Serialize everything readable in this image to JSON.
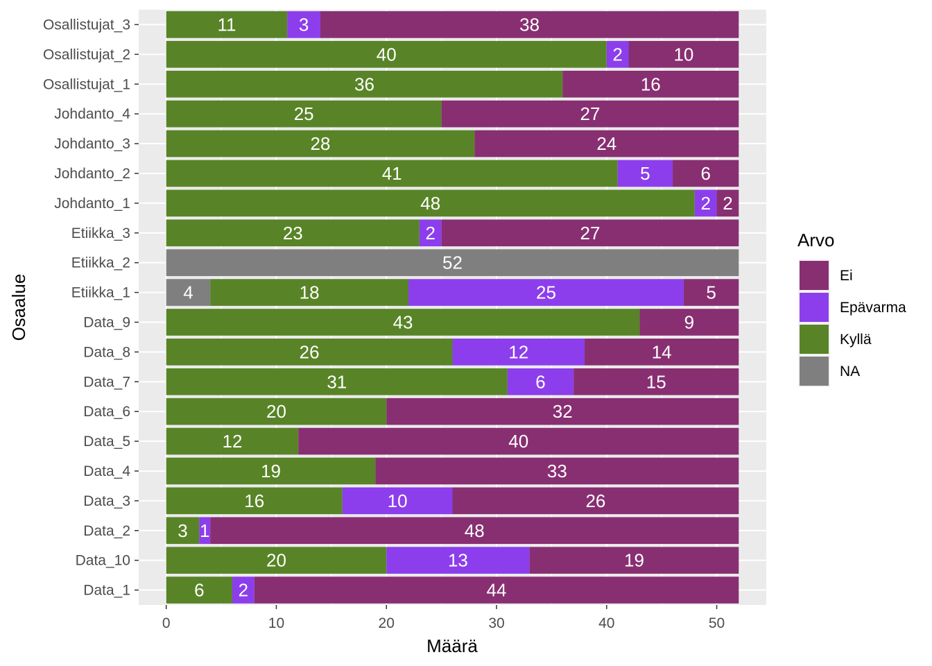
{
  "chart_data": {
    "type": "bar",
    "orientation": "horizontal",
    "stacked": true,
    "xlabel": "Määrä",
    "ylabel": "Osaalue",
    "xlim": [
      -2.5,
      54.5
    ],
    "xticks": [
      0,
      10,
      20,
      30,
      40,
      50
    ],
    "grid": true,
    "categories": [
      "Osallistujat_3",
      "Osallistujat_2",
      "Osallistujat_1",
      "Johdanto_4",
      "Johdanto_3",
      "Johdanto_2",
      "Johdanto_1",
      "Etiikka_3",
      "Etiikka_2",
      "Etiikka_1",
      "Data_9",
      "Data_8",
      "Data_7",
      "Data_6",
      "Data_5",
      "Data_4",
      "Data_3",
      "Data_2",
      "Data_10",
      "Data_1"
    ],
    "stack_order": [
      "NA",
      "Kyllä",
      "Epävarma",
      "Ei"
    ],
    "series": [
      {
        "name": "Ei",
        "color": "#882f72",
        "values": [
          38,
          10,
          16,
          27,
          24,
          6,
          2,
          27,
          0,
          5,
          9,
          14,
          15,
          32,
          40,
          33,
          26,
          48,
          19,
          44
        ]
      },
      {
        "name": "Epävarma",
        "color": "#8c3eec",
        "values": [
          3,
          2,
          0,
          0,
          0,
          5,
          2,
          2,
          0,
          25,
          0,
          12,
          6,
          0,
          0,
          0,
          10,
          1,
          13,
          2
        ]
      },
      {
        "name": "Kyllä",
        "color": "#588427",
        "values": [
          11,
          40,
          36,
          25,
          28,
          41,
          48,
          23,
          0,
          18,
          43,
          26,
          31,
          20,
          12,
          19,
          16,
          3,
          20,
          6
        ]
      },
      {
        "name": "NA",
        "color": "#7f7f7f",
        "values": [
          0,
          0,
          0,
          0,
          0,
          0,
          0,
          0,
          52,
          4,
          0,
          0,
          0,
          0,
          0,
          0,
          0,
          0,
          0,
          0
        ]
      }
    ],
    "legend": {
      "title": "Arvo",
      "position": "right",
      "items": [
        "Ei",
        "Epävarma",
        "Kyllä",
        "NA"
      ]
    }
  }
}
